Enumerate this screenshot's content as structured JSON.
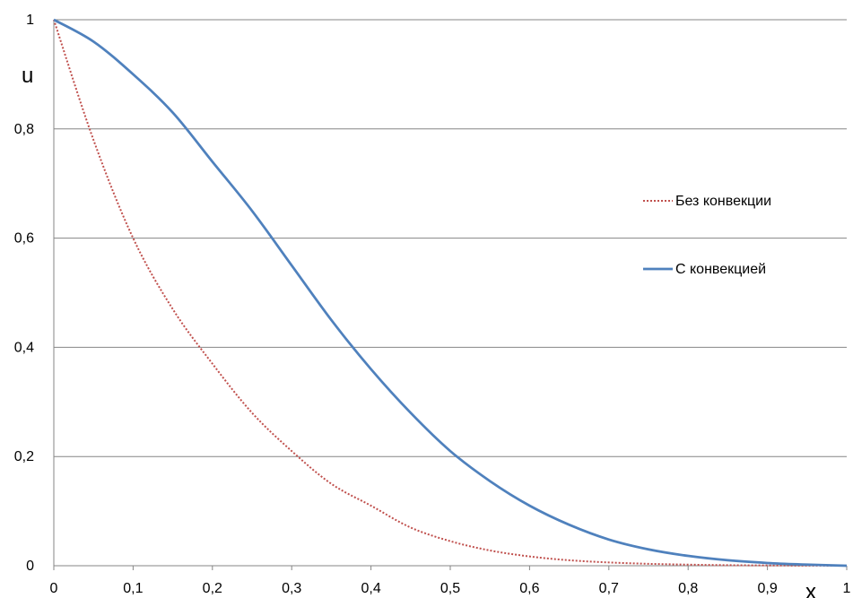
{
  "chart_data": {
    "type": "line",
    "xlabel": "x",
    "ylabel": "u",
    "xlim": [
      0,
      1
    ],
    "ylim": [
      0,
      1
    ],
    "x_ticks": [
      "0",
      "0,1",
      "0,2",
      "0,3",
      "0,4",
      "0,5",
      "0,6",
      "0,7",
      "0,8",
      "0,9",
      "1"
    ],
    "y_ticks": [
      "0",
      "0,2",
      "0,4",
      "0,6",
      "0,8",
      "1"
    ],
    "grid": "horizontal",
    "legend_position": "right",
    "x": [
      0,
      0.05,
      0.1,
      0.15,
      0.2,
      0.25,
      0.3,
      0.35,
      0.4,
      0.45,
      0.5,
      0.55,
      0.6,
      0.65,
      0.7,
      0.75,
      0.8,
      0.85,
      0.9,
      0.95,
      1
    ],
    "series": [
      {
        "name": "Без конвекции",
        "style": "dotted",
        "color": "#C0504D",
        "values": [
          1,
          0.78,
          0.6,
          0.47,
          0.37,
          0.28,
          0.21,
          0.15,
          0.11,
          0.07,
          0.045,
          0.028,
          0.017,
          0.01,
          0.006,
          0.0035,
          0.002,
          0.001,
          0.0005,
          0.0002,
          0
        ]
      },
      {
        "name": "С конвекцией",
        "style": "solid",
        "color": "#4F81BD",
        "values": [
          1,
          0.96,
          0.9,
          0.83,
          0.74,
          0.65,
          0.55,
          0.45,
          0.36,
          0.28,
          0.21,
          0.155,
          0.11,
          0.075,
          0.048,
          0.03,
          0.018,
          0.01,
          0.005,
          0.002,
          0
        ]
      }
    ]
  }
}
